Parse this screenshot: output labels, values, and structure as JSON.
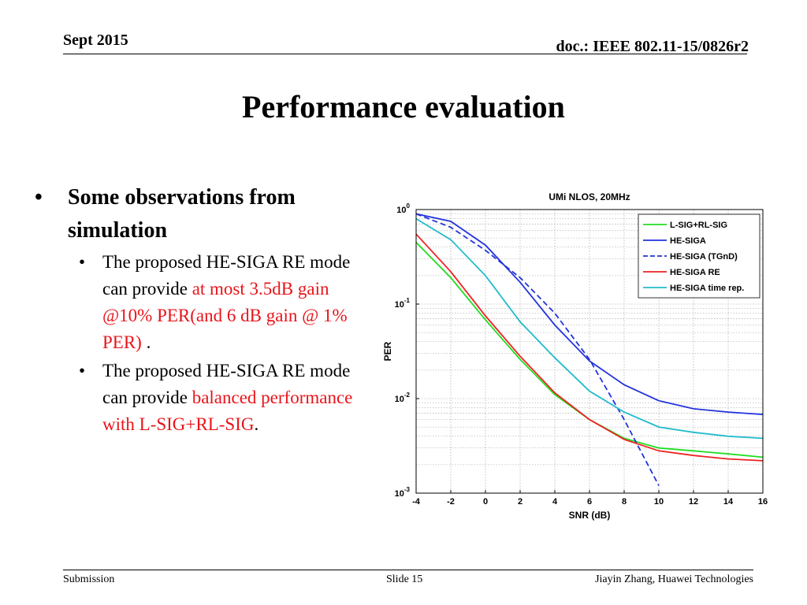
{
  "header": {
    "date": "Sept 2015",
    "doc": "doc.: IEEE 802.11-15/0826r2"
  },
  "title": "Performance evaluation",
  "bullets": {
    "main": "Some observations from simulation",
    "bullet_glyph": "•",
    "items": [
      {
        "pre": "The proposed HE-SIGA RE mode can provide ",
        "highlight": "at most 3.5dB gain @10% PER(and 6 dB gain @ 1% PER)",
        "post": " ."
      },
      {
        "pre": "The proposed HE-SIGA RE mode can provide ",
        "highlight": "balanced performance with L-SIG+RL-SIG",
        "post": "."
      }
    ]
  },
  "highlight_color": "#e8141a",
  "footer": {
    "left": "Submission",
    "center": "Slide 15",
    "right": "Jiayin Zhang, Huawei Technologies"
  },
  "chart_data": {
    "type": "line",
    "title": "UMi NLOS, 20MHz",
    "xlabel": "SNR (dB)",
    "ylabel": "PER",
    "xlim": [
      -4,
      16
    ],
    "ylim": [
      0.001,
      1
    ],
    "yscale": "log",
    "xticks": [
      -4,
      -2,
      0,
      2,
      4,
      6,
      8,
      10,
      12,
      14,
      16
    ],
    "yticks": [
      {
        "value": 1,
        "base": "10",
        "exp": "0"
      },
      {
        "value": 0.1,
        "base": "10",
        "exp": "-1"
      },
      {
        "value": 0.01,
        "base": "10",
        "exp": "-2"
      },
      {
        "value": 0.001,
        "base": "10",
        "exp": "-3"
      }
    ],
    "grid": true,
    "legend_position": "top-right",
    "series": [
      {
        "name": "L-SIG+RL-SIG",
        "color": "#22dd22",
        "dash": "solid",
        "x": [
          -4,
          -2,
          0,
          2,
          4,
          6,
          8,
          10,
          12,
          14,
          16
        ],
        "y": [
          0.45,
          0.19,
          0.068,
          0.026,
          0.011,
          0.006,
          0.0038,
          0.003,
          0.0028,
          0.0026,
          0.0024
        ]
      },
      {
        "name": "HE-SIGA",
        "color": "#2233dd",
        "dash": "solid",
        "x": [
          -4,
          -2,
          0,
          2,
          4,
          6,
          8,
          10,
          12,
          14,
          16
        ],
        "y": [
          0.9,
          0.75,
          0.42,
          0.17,
          0.06,
          0.025,
          0.014,
          0.0095,
          0.0078,
          0.0072,
          0.0068
        ]
      },
      {
        "name": "HE-SIGA (TGnD)",
        "color": "#2233dd",
        "dash": "dashed",
        "x": [
          -4,
          -2,
          0,
          2,
          4,
          6,
          8,
          10
        ],
        "y": [
          0.9,
          0.65,
          0.37,
          0.19,
          0.08,
          0.026,
          0.006,
          0.0012
        ]
      },
      {
        "name": "HE-SIGA RE",
        "color": "#ee2222",
        "dash": "solid",
        "x": [
          -4,
          -2,
          0,
          2,
          4,
          6,
          8,
          10,
          12,
          14,
          16
        ],
        "y": [
          0.55,
          0.22,
          0.075,
          0.028,
          0.0115,
          0.006,
          0.0037,
          0.0028,
          0.0025,
          0.0023,
          0.0022
        ]
      },
      {
        "name": "HE-SIGA time rep.",
        "color": "#22bbcc",
        "dash": "solid",
        "x": [
          -4,
          -2,
          0,
          2,
          4,
          6,
          8,
          10,
          12,
          14,
          16
        ],
        "y": [
          0.8,
          0.48,
          0.2,
          0.065,
          0.027,
          0.012,
          0.0072,
          0.005,
          0.0044,
          0.004,
          0.0038
        ]
      }
    ]
  }
}
